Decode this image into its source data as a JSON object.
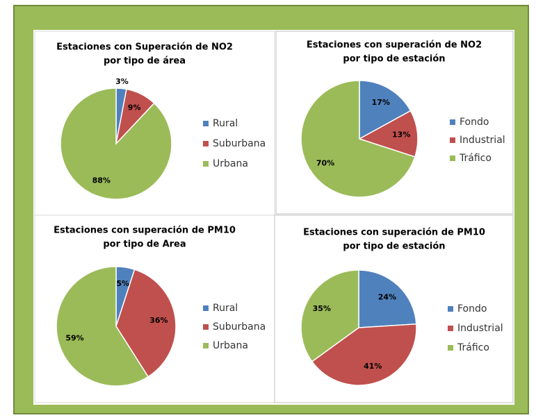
{
  "chart_data": [
    {
      "type": "pie",
      "title": [
        "Estaciones con Superación de NO2",
        "por tipo de área"
      ],
      "categories": [
        "Rural",
        "Suburbana",
        "Urbana"
      ],
      "values": [
        3,
        9,
        88
      ],
      "value_labels": [
        "3%",
        "9%",
        "88%"
      ],
      "colors": [
        "#4f81bd",
        "#c0504d",
        "#9bbb59"
      ],
      "legend": "right"
    },
    {
      "type": "pie",
      "title": [
        "Estaciones con superación de NO2",
        "por tipo de estación"
      ],
      "categories": [
        "Fondo",
        "Industrial",
        "Tráfico"
      ],
      "values": [
        17,
        13,
        70
      ],
      "value_labels": [
        "17%",
        "13%",
        "70%"
      ],
      "colors": [
        "#4f81bd",
        "#c0504d",
        "#9bbb59"
      ],
      "legend": "right"
    },
    {
      "type": "pie",
      "title": [
        "Estaciones con superación de PM10",
        "por tipo de Area"
      ],
      "categories": [
        "Rural",
        "Suburbana",
        "Urbana"
      ],
      "values": [
        5,
        36,
        59
      ],
      "value_labels": [
        "5%",
        "36%",
        "59%"
      ],
      "colors": [
        "#4f81bd",
        "#c0504d",
        "#9bbb59"
      ],
      "legend": "right"
    },
    {
      "type": "pie",
      "title": [
        "Estaciones con superación de PM10",
        "por tipo de estación"
      ],
      "categories": [
        "Fondo",
        "Industrial",
        "Tráfico"
      ],
      "values": [
        24,
        41,
        35
      ],
      "value_labels": [
        "24%",
        "41%",
        "35%"
      ],
      "colors": [
        "#4f81bd",
        "#c0504d",
        "#9bbb59"
      ],
      "legend": "right"
    }
  ]
}
